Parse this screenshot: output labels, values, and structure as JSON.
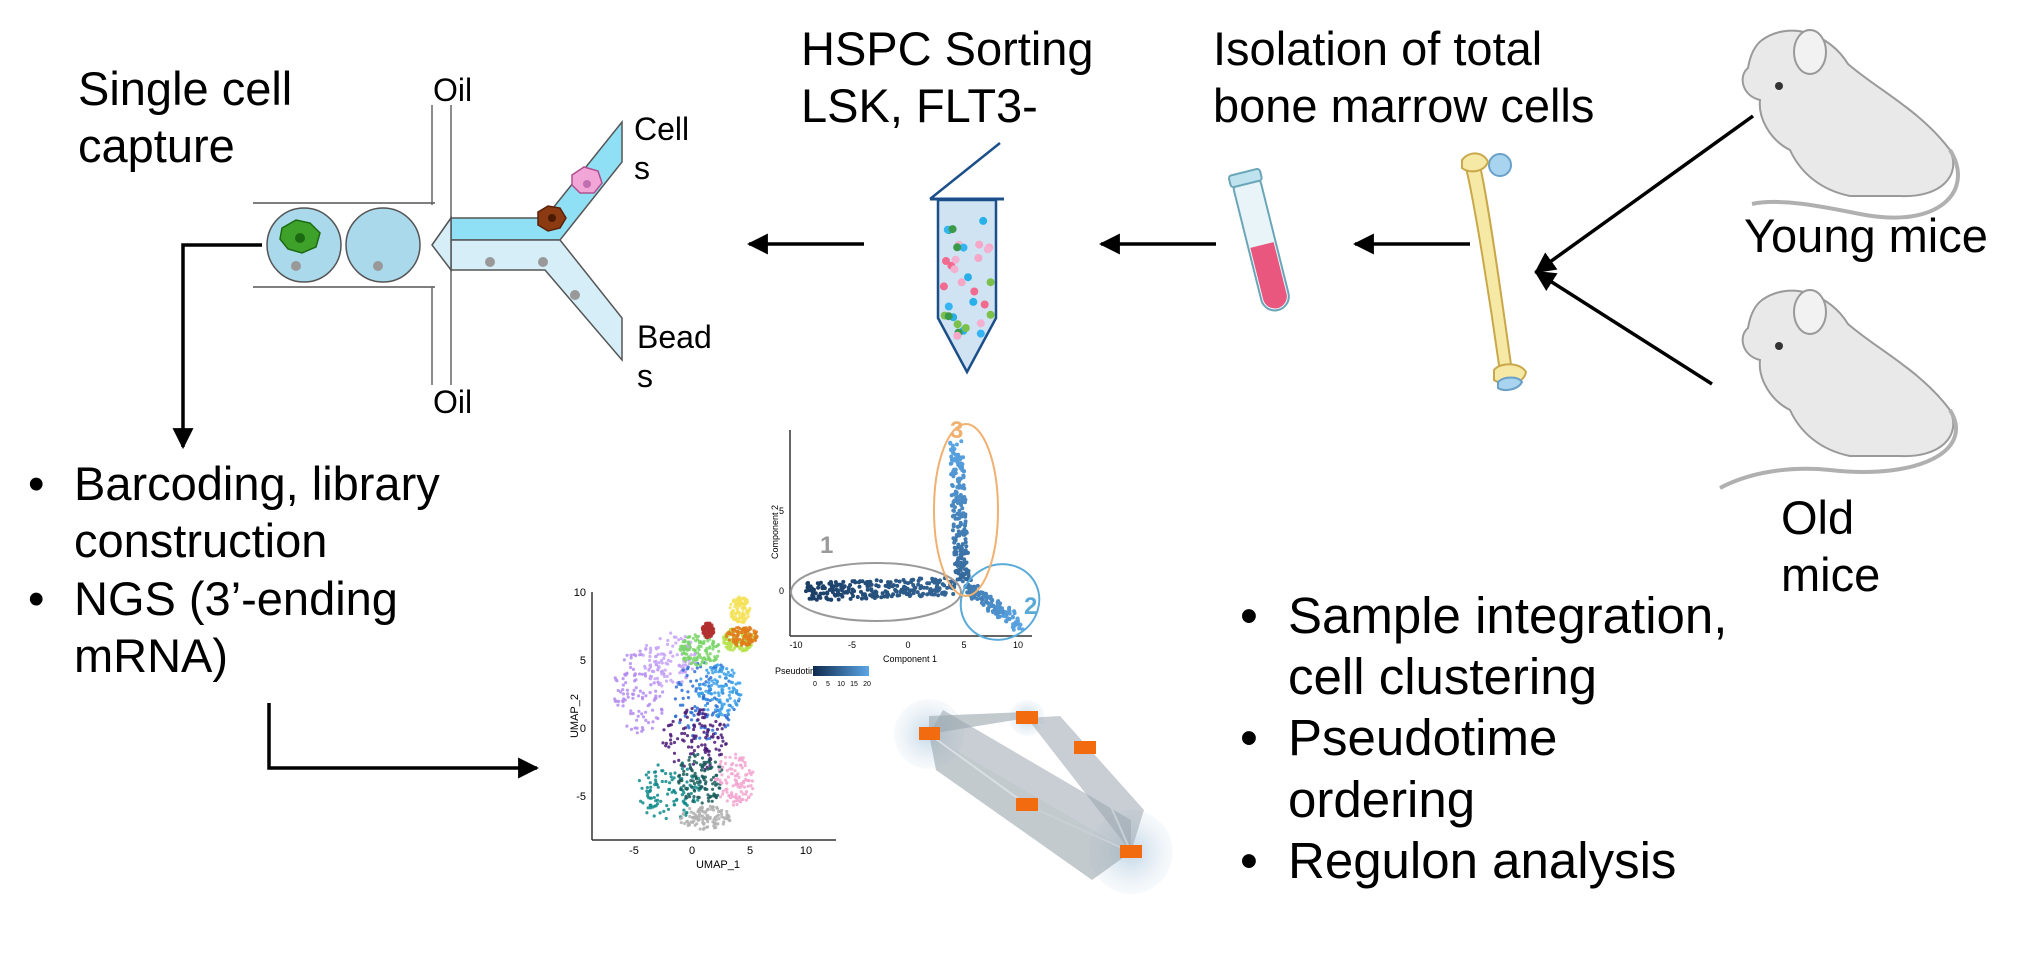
{
  "labels": {
    "single_cell_capture": [
      "Single cell",
      "capture"
    ],
    "oil_top": "Oil",
    "oil_bottom": "Oil",
    "cells": [
      "Cell",
      "s"
    ],
    "beads": [
      "Bead",
      "s"
    ],
    "hspc_sorting": [
      "HSPC Sorting",
      "LSK, FLT3-"
    ],
    "isolation": [
      "Isolation of total",
      "bone marrow cells"
    ],
    "young_mice": "Young mice",
    "old_mice": [
      "Old",
      "mice"
    ]
  },
  "left_bullets": {
    "bullet_symbol": "•",
    "items": [
      [
        "Barcoding, library",
        "construction"
      ],
      [
        "NGS (3’-ending",
        "mRNA)"
      ]
    ]
  },
  "right_bullets": {
    "bullet_symbol": "•",
    "items": [
      [
        "Sample integration,",
        "cell clustering"
      ],
      [
        "Pseudotime",
        "ordering"
      ],
      [
        "Regulon analysis"
      ]
    ]
  },
  "umap_plot": {
    "xlabel": "UMAP_1",
    "ylabel": "UMAP_2",
    "xticks": [
      "-5",
      "0",
      "5",
      "10"
    ],
    "yticks": [
      "10",
      "5",
      "0",
      "-5"
    ]
  },
  "trajectory_plot": {
    "xlabel": "Component 1",
    "ylabel": "Component 2",
    "xticks": [
      "-10",
      "-5",
      "0",
      "5",
      "10"
    ],
    "yticks": [
      "5",
      "0"
    ],
    "branch_labels": [
      "1",
      "2",
      "3"
    ],
    "legend_title": "Pseudotime",
    "legend_ticks": [
      "0",
      "5",
      "10",
      "15",
      "20"
    ]
  },
  "colors": {
    "flow_arrows": "#000000",
    "droplet_fill": "#a9d9ea",
    "channel_cells": "#8fe0f4",
    "channel_beads": "#d6eef8",
    "tube_top_blue": "#1c4f8a",
    "pseudotime_dark": "#0e2a4d",
    "pseudotime_light": "#5ba6e6",
    "branch1_ring": "#9a9a9a",
    "branch2_ring": "#5aaad8",
    "branch3_ring": "#f0b070",
    "network_node": "#f26b0f"
  }
}
